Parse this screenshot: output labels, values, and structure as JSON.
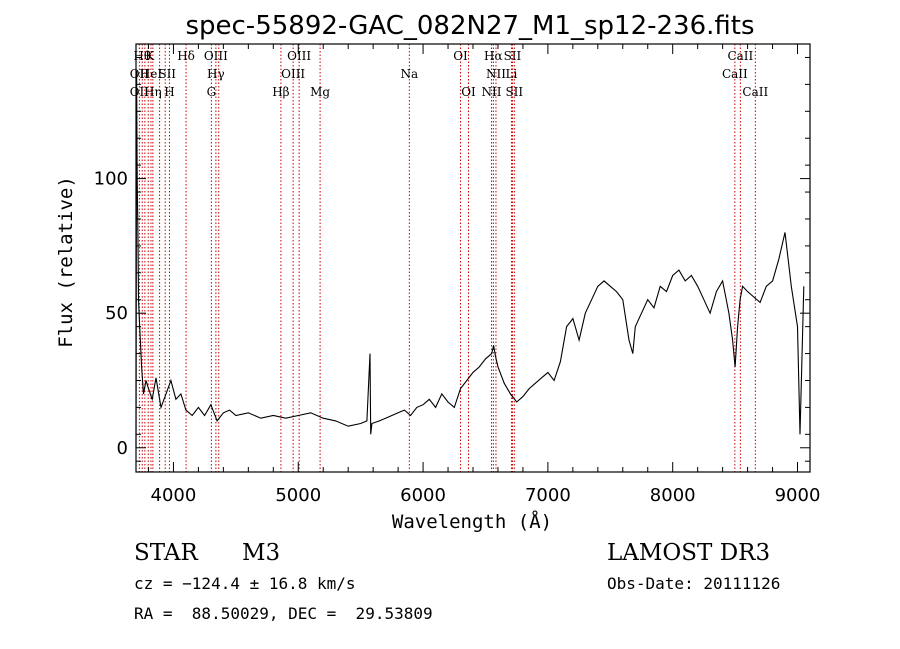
{
  "chart_data": {
    "type": "line",
    "title": "spec-55892-GAC_082N27_M1_sp12-236.fits",
    "xlabel": "Wavelength (Å)",
    "ylabel": "Flux (relative)",
    "xlim": [
      3700,
      9100
    ],
    "ylim": [
      -9,
      150
    ],
    "xticks": [
      4000,
      5000,
      6000,
      7000,
      8000,
      9000
    ],
    "xtick_labels": [
      "4000",
      "5000",
      "6000",
      "7000",
      "8000",
      "9000"
    ],
    "yticks": [
      0,
      50,
      100
    ],
    "ytick_labels": [
      "0",
      "50",
      "100"
    ],
    "grid": false,
    "series": [
      {
        "name": "flux",
        "x": [
          3700,
          3705,
          3710,
          3715,
          3720,
          3730,
          3745,
          3760,
          3780,
          3800,
          3830,
          3860,
          3900,
          3940,
          3980,
          4020,
          4060,
          4100,
          4150,
          4200,
          4250,
          4300,
          4350,
          4400,
          4450,
          4500,
          4600,
          4700,
          4800,
          4900,
          5000,
          5100,
          5200,
          5300,
          5400,
          5500,
          5550,
          5575,
          5580,
          5590,
          5650,
          5700,
          5800,
          5850,
          5900,
          5950,
          6000,
          6050,
          6100,
          6150,
          6200,
          6250,
          6300,
          6350,
          6400,
          6450,
          6500,
          6550,
          6565,
          6580,
          6600,
          6650,
          6700,
          6750,
          6800,
          6850,
          6900,
          6950,
          7000,
          7050,
          7100,
          7150,
          7200,
          7250,
          7300,
          7350,
          7400,
          7450,
          7500,
          7550,
          7600,
          7650,
          7680,
          7700,
          7750,
          7800,
          7850,
          7900,
          7950,
          8000,
          8050,
          8100,
          8150,
          8200,
          8250,
          8300,
          8350,
          8400,
          8450,
          8480,
          8500,
          8520,
          8540,
          8560,
          8600,
          8650,
          8700,
          8750,
          8800,
          8850,
          8900,
          8950,
          9000,
          9020,
          9050
        ],
        "values": [
          0,
          140,
          100,
          80,
          55,
          45,
          30,
          20,
          25,
          22,
          18,
          26,
          15,
          20,
          25,
          18,
          20,
          14,
          12,
          15,
          12,
          16,
          10,
          13,
          14,
          12,
          13,
          11,
          12,
          11,
          12,
          13,
          11,
          10,
          8,
          9,
          10,
          35,
          5,
          9,
          10,
          11,
          13,
          14,
          12,
          15,
          16,
          18,
          15,
          20,
          17,
          15,
          22,
          25,
          28,
          30,
          33,
          35,
          38,
          34,
          30,
          24,
          20,
          17,
          19,
          22,
          24,
          26,
          28,
          25,
          32,
          45,
          48,
          40,
          50,
          55,
          60,
          62,
          60,
          58,
          55,
          40,
          35,
          45,
          50,
          55,
          52,
          60,
          58,
          64,
          66,
          62,
          64,
          60,
          55,
          50,
          58,
          62,
          50,
          40,
          30,
          45,
          55,
          60,
          58,
          56,
          54,
          60,
          62,
          70,
          80,
          60,
          45,
          5,
          60
        ]
      }
    ],
    "line_ids": {
      "row1": [
        {
          "w": 3750,
          "label": "Hθ"
        },
        {
          "w": 3810,
          "label": "K"
        },
        {
          "w": 4101,
          "label": "Hδ"
        },
        {
          "w": 4340,
          "label": "OIII"
        },
        {
          "w": 5007,
          "label": "OIII"
        },
        {
          "w": 6300,
          "label": "OI"
        },
        {
          "w": 6563,
          "label": "Hα"
        },
        {
          "w": 6716,
          "label": "SII"
        },
        {
          "w": 8542,
          "label": "CaII"
        }
      ],
      "row2": [
        {
          "w": 3727,
          "label": "OII"
        },
        {
          "w": 3820,
          "label": "HeI"
        },
        {
          "w": 3950,
          "label": "SII"
        },
        {
          "w": 4340,
          "label": "Hγ"
        },
        {
          "w": 4959,
          "label": "OIII"
        },
        {
          "w": 5890,
          "label": "Na"
        },
        {
          "w": 6584,
          "label": "NII"
        },
        {
          "w": 6708,
          "label": "Li"
        },
        {
          "w": 8498,
          "label": "CaII"
        }
      ],
      "row3": [
        {
          "w": 3727,
          "label": "OII"
        },
        {
          "w": 3835,
          "label": "Hη"
        },
        {
          "w": 3968,
          "label": "H"
        },
        {
          "w": 4304,
          "label": "G"
        },
        {
          "w": 4861,
          "label": "Hβ"
        },
        {
          "w": 5175,
          "label": "Mg"
        },
        {
          "w": 6364,
          "label": "OI"
        },
        {
          "w": 6548,
          "label": "NII"
        },
        {
          "w": 6731,
          "label": "SII"
        },
        {
          "w": 8662,
          "label": "CaII"
        }
      ],
      "line_wavelengths": [
        3727,
        3750,
        3771,
        3798,
        3820,
        3835,
        3889,
        3934,
        3968,
        4101,
        4304,
        4340,
        4363,
        4861,
        4959,
        5007,
        5175,
        5890,
        6300,
        6364,
        6548,
        6563,
        6584,
        6708,
        6716,
        6731,
        8498,
        8542,
        8662
      ],
      "line_color": "#cc0000"
    }
  },
  "info": {
    "object_type": "STAR",
    "subclass": "M3",
    "survey": "LAMOST DR3",
    "velocity": "cz = −124.4 ± 16.8 km/s",
    "coords": "RA =  88.50029, DEC =  29.53809",
    "obs_date": "Obs-Date: 20111126"
  }
}
